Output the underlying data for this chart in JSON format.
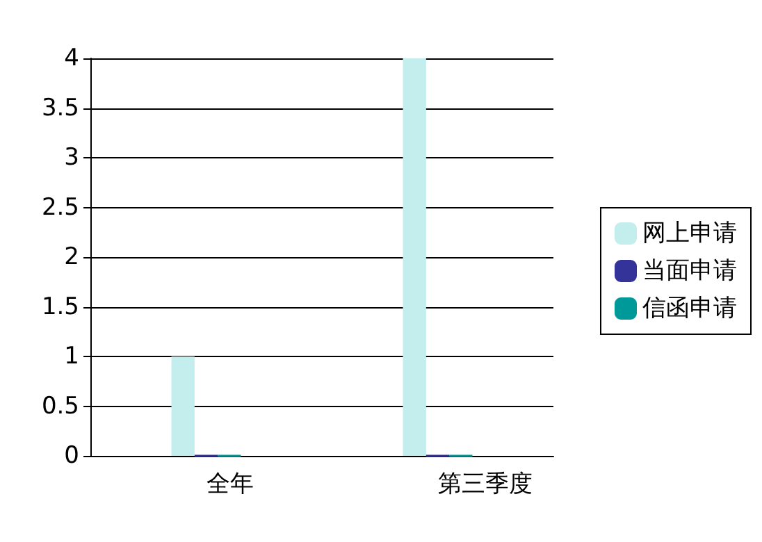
{
  "chart_data": {
    "type": "bar",
    "categories": [
      "全年",
      "第三季度"
    ],
    "series": [
      {
        "name": "网上申请",
        "color": "#c4eeee",
        "values": [
          1,
          4
        ]
      },
      {
        "name": "当面申请",
        "color": "#333399",
        "values": [
          0,
          0
        ]
      },
      {
        "name": "信函申请",
        "color": "#009999",
        "values": [
          0,
          0
        ]
      }
    ],
    "ylim": [
      0,
      4
    ],
    "yticks": [
      0,
      0.5,
      1,
      1.5,
      2,
      2.5,
      3,
      3.5,
      4
    ],
    "grid": "y",
    "legend": "right"
  }
}
